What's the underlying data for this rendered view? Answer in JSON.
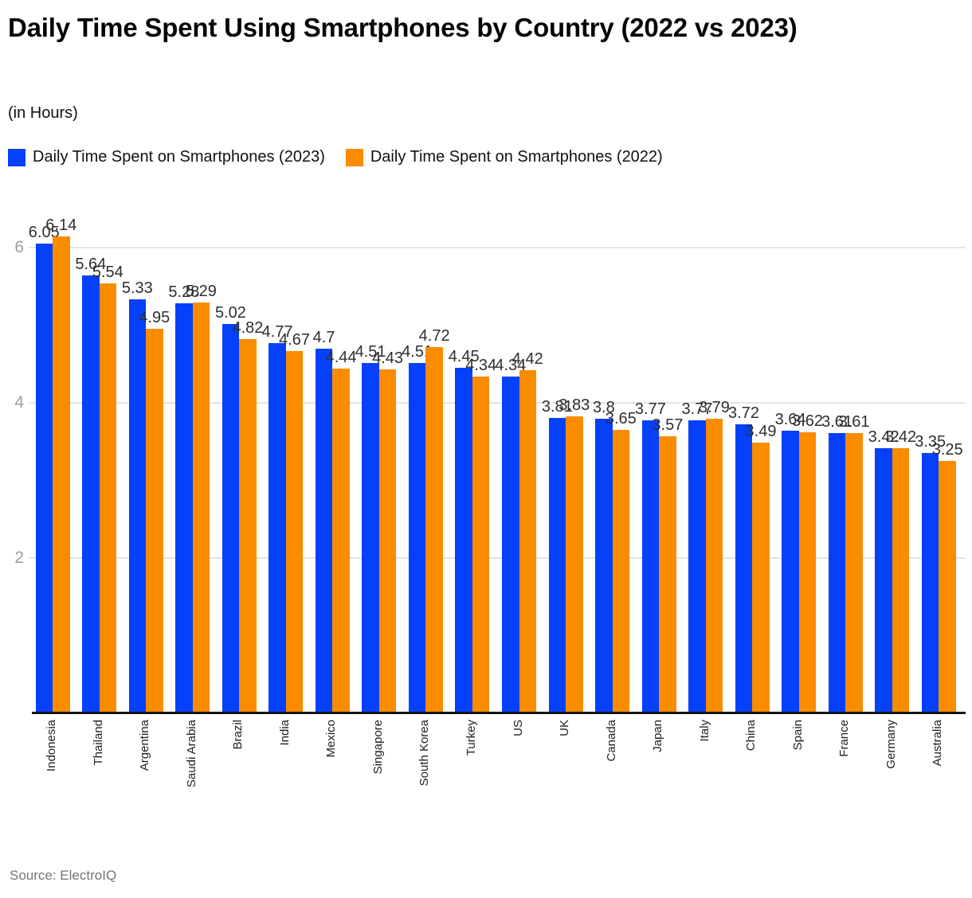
{
  "header": {
    "title": "Daily Time Spent Using Smartphones by Country (2022 vs 2023)",
    "subtitle": "(in Hours)"
  },
  "footer": {
    "source": "Source: ElectroIQ"
  },
  "chart_data": {
    "type": "bar",
    "title": "Daily Time Spent Using Smartphones by Country (2022 vs 2023)",
    "subtitle": "(in Hours)",
    "categories": [
      "Indonesia",
      "Thailand",
      "Argentina",
      "Saudi Arabia",
      "Brazil",
      "India",
      "Mexico",
      "Singapore",
      "South Korea",
      "Turkey",
      "US",
      "UK",
      "Canada",
      "Japan",
      "Italy",
      "China",
      "Spain",
      "France",
      "Germany",
      "Australia"
    ],
    "series": [
      {
        "name": "Daily Time Spent on Smartphones (2023)",
        "color": "#0540fb",
        "values": [
          6.05,
          5.64,
          5.33,
          5.28,
          5.02,
          4.77,
          4.7,
          4.51,
          4.51,
          4.45,
          4.34,
          3.81,
          3.8,
          3.77,
          3.77,
          3.72,
          3.64,
          3.61,
          3.42,
          3.35
        ]
      },
      {
        "name": "Daily Time Spent on Smartphones (2022)",
        "color": "#fa8c00",
        "values": [
          6.14,
          5.54,
          4.95,
          5.29,
          4.82,
          4.67,
          4.44,
          4.43,
          4.72,
          4.34,
          4.42,
          3.83,
          3.65,
          3.57,
          3.79,
          3.49,
          3.62,
          3.61,
          3.42,
          3.25
        ]
      }
    ],
    "xlabel": "",
    "ylabel": "",
    "ylim": [
      0,
      6.6
    ],
    "yticks": [
      2,
      4,
      6
    ],
    "grid": true,
    "legend_position": "top",
    "value_labels": true,
    "axis_colors": {
      "tick_label": "#9e9e9e",
      "gridline": "#e4e4e4",
      "baseline": "#141414",
      "value_label": "#2f2f2f"
    }
  }
}
